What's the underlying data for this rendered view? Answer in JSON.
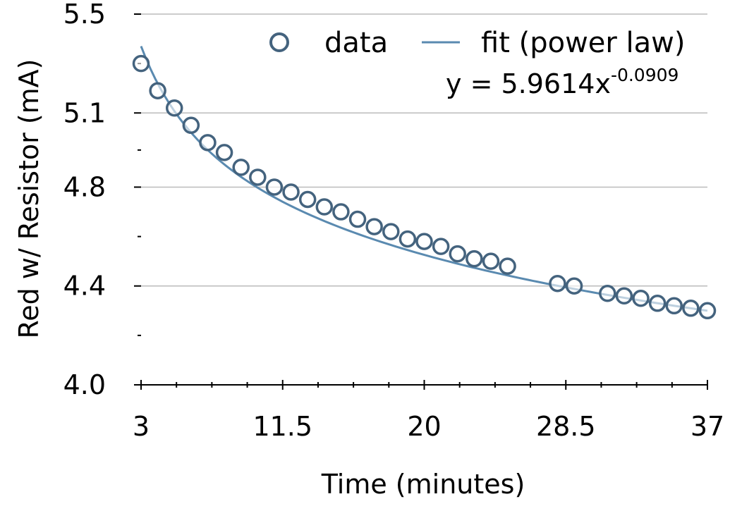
{
  "chart_data": {
    "type": "scatter",
    "xlabel": "Time (minutes)",
    "ylabel": "Red w/ Resistor (mA)",
    "xlim": [
      3,
      37
    ],
    "ylim": [
      4.0,
      5.5
    ],
    "x_ticks": [
      "3",
      "11.5",
      "20",
      "28.5",
      "37"
    ],
    "y_ticks": [
      "4.0",
      "4.4",
      "4.8",
      "5.1",
      "5.5"
    ],
    "grid": "horizontal",
    "legend_position": "top-right",
    "series": [
      {
        "name": "data",
        "marker": "open-circle",
        "x": [
          3,
          4,
          5,
          6,
          7,
          8,
          9,
          10,
          11,
          12,
          13,
          14,
          15,
          16,
          17,
          18,
          19,
          20,
          21,
          22,
          23,
          24,
          25,
          28,
          29,
          31,
          32,
          33,
          34,
          35,
          36,
          37
        ],
        "y": [
          5.3,
          5.19,
          5.12,
          5.05,
          4.98,
          4.94,
          4.88,
          4.84,
          4.8,
          4.78,
          4.75,
          4.72,
          4.7,
          4.67,
          4.64,
          4.62,
          4.59,
          4.58,
          4.56,
          4.53,
          4.51,
          4.5,
          4.48,
          4.41,
          4.4,
          4.37,
          4.36,
          4.35,
          4.33,
          4.32,
          4.31,
          4.3
        ]
      },
      {
        "name": "fit (power law)",
        "type": "line",
        "function": "power",
        "coefficient": 5.9614,
        "exponent": -0.0909
      }
    ],
    "annotation": {
      "equation_prefix": "y = 5.9614x",
      "equation_exponent": "-0.0909"
    },
    "colors": {
      "marker": "#44637e",
      "fit_line": "#5a8ab0",
      "grid": "#bbbbbb",
      "axis": "#000000"
    }
  }
}
